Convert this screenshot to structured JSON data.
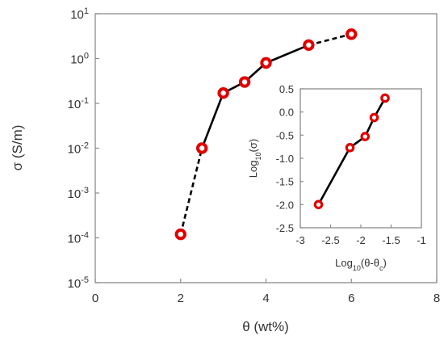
{
  "chart_data": [
    {
      "type": "scatter",
      "title": "",
      "xlabel": "θ (wt%)",
      "ylabel": "σ (S/m)",
      "xlim": [
        0,
        8
      ],
      "ylim": [
        1e-05,
        10
      ],
      "y_scale": "log",
      "x_ticks": [
        "0",
        "2",
        "4",
        "6",
        "8"
      ],
      "y_ticks": [
        {
          "base": "10",
          "exp": "1"
        },
        {
          "base": "10",
          "exp": "0"
        },
        {
          "base": "10",
          "exp": "-1"
        },
        {
          "base": "10",
          "exp": "-2"
        },
        {
          "base": "10",
          "exp": "-3"
        },
        {
          "base": "10",
          "exp": "-4"
        },
        {
          "base": "10",
          "exp": "-5"
        }
      ],
      "grid": false,
      "series": [
        {
          "color": "#e10000",
          "x": [
            2,
            2.5,
            3,
            3.5,
            4,
            5,
            6
          ],
          "y": [
            0.00012,
            0.01,
            0.17,
            0.3,
            0.8,
            2.0,
            3.5
          ]
        }
      ],
      "line_segments": [
        {
          "from": 0,
          "to": 1,
          "style": "dashed"
        },
        {
          "from": 1,
          "to": 5,
          "style": "solid"
        },
        {
          "from": 5,
          "to": 6,
          "style": "dashed"
        }
      ]
    },
    {
      "type": "scatter",
      "title": "",
      "xlabel": {
        "base": "Log",
        "sub": "10",
        "rest": "(θ-θ",
        "sub2": "c",
        "end": ")"
      },
      "ylabel": {
        "base": "Log",
        "sub": "10",
        "rest": "(σ)"
      },
      "xlim": [
        -3,
        -1
      ],
      "ylim": [
        -2.5,
        0.5
      ],
      "x_ticks": [
        "-3",
        "-2.5",
        "-2",
        "-1.5",
        "-1"
      ],
      "y_ticks": [
        "0.5",
        "0.0",
        "-0.5",
        "-1.0",
        "-1.5",
        "-2.0",
        "-2.5"
      ],
      "grid": false,
      "series": [
        {
          "color": "#e10000",
          "x": [
            -2.7,
            -2.18,
            -1.93,
            -1.78,
            -1.6
          ],
          "y": [
            -2.0,
            -0.77,
            -0.53,
            -0.12,
            0.3
          ]
        }
      ]
    }
  ]
}
